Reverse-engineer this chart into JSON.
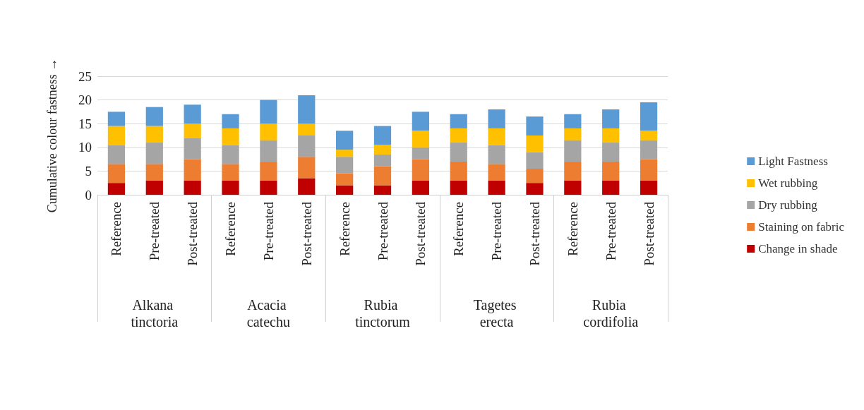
{
  "chart_data": {
    "type": "bar",
    "stacked": true,
    "ylabel": "Cumulative colour fastness →",
    "categories": [
      "Reference",
      "Pre-treated",
      "Post-treated",
      "Reference",
      "Pre-treated",
      "Post-treated",
      "Reference",
      "Pre-treated",
      "Post-treated",
      "Reference",
      "Pre-treated",
      "Post-treated",
      "Reference",
      "Pre-treated",
      "Post-treated"
    ],
    "annotations": [
      "Alkana tinctoria",
      "Acacia catechu",
      "Rubia tinctorum",
      "Tagetes erecta",
      "Rubia cordifolia"
    ],
    "series": [
      {
        "name": "Change in shade",
        "color": "#c00000",
        "values": [
          2.5,
          3,
          3,
          3,
          3,
          3.5,
          2,
          2,
          3,
          3,
          3,
          2.5,
          3,
          3,
          3
        ]
      },
      {
        "name": "Staining on fabric",
        "color": "#ed7d31",
        "values": [
          4,
          3.5,
          4.5,
          3.5,
          4,
          4.5,
          2.5,
          4,
          4.5,
          4,
          3.5,
          3,
          4,
          4,
          4.5
        ]
      },
      {
        "name": "Dry rubbing",
        "color": "#a5a5a5",
        "values": [
          4,
          4.5,
          4.5,
          4,
          4.5,
          4.5,
          3.5,
          2.5,
          2.5,
          4,
          4,
          3.5,
          4.5,
          4,
          4
        ]
      },
      {
        "name": "Wet rubbing",
        "color": "#ffc000",
        "values": [
          4,
          3.5,
          3,
          3.5,
          3.5,
          2.5,
          1.5,
          2,
          3.5,
          3,
          3.5,
          3.5,
          2.5,
          3,
          2
        ]
      },
      {
        "name": "Light Fastness",
        "color": "#5b9bd5",
        "values": [
          3,
          4,
          4,
          3,
          5,
          6,
          4,
          4,
          4,
          3,
          4,
          4,
          3,
          4,
          6
        ]
      }
    ],
    "ylim": [
      0,
      25
    ],
    "yticks": [
      0,
      5,
      10,
      15,
      20,
      25
    ],
    "grid": "y",
    "legend": "right"
  }
}
